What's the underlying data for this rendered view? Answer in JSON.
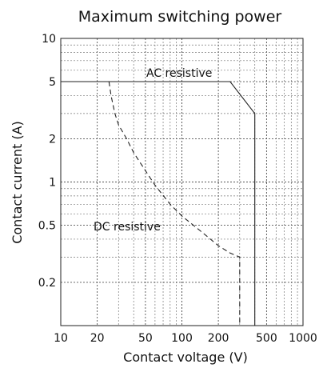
{
  "chart_data": {
    "type": "line",
    "title": "Maximum switching power",
    "xlabel": "Contact voltage (V)",
    "ylabel": "Contact current (A)",
    "x_scale": "log",
    "y_scale": "log",
    "xlim": [
      10,
      1000
    ],
    "ylim": [
      0.1,
      10
    ],
    "grid": true,
    "x_ticks": [
      {
        "value": 10,
        "label": "10"
      },
      {
        "value": 20,
        "label": "20"
      },
      {
        "value": 50,
        "label": "50"
      },
      {
        "value": 100,
        "label": "100"
      },
      {
        "value": 200,
        "label": "200"
      },
      {
        "value": 500,
        "label": "500"
      },
      {
        "value": 1000,
        "label": "1000"
      }
    ],
    "y_ticks": [
      {
        "value": 0.2,
        "label": "0.2"
      },
      {
        "value": 0.5,
        "label": "0.5"
      },
      {
        "value": 1,
        "label": "1"
      },
      {
        "value": 2,
        "label": "2"
      },
      {
        "value": 5,
        "label": "5"
      },
      {
        "value": 10,
        "label": "10"
      }
    ],
    "series": [
      {
        "name": "AC resistive",
        "style": "solid",
        "points": [
          [
            10,
            5
          ],
          [
            250,
            5
          ],
          [
            400,
            3
          ],
          [
            400,
            0.1
          ]
        ]
      },
      {
        "name": "DC resistive",
        "style": "dashed",
        "points": [
          [
            25,
            5
          ],
          [
            26,
            4
          ],
          [
            28,
            3
          ],
          [
            30,
            2.5
          ],
          [
            35,
            2
          ],
          [
            40,
            1.6
          ],
          [
            50,
            1.2
          ],
          [
            60,
            0.95
          ],
          [
            80,
            0.7
          ],
          [
            100,
            0.58
          ],
          [
            150,
            0.44
          ],
          [
            200,
            0.36
          ],
          [
            250,
            0.32
          ],
          [
            300,
            0.3
          ],
          [
            300,
            0.1
          ]
        ]
      }
    ]
  }
}
